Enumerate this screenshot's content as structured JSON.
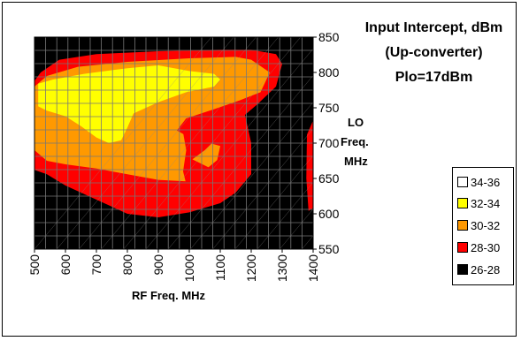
{
  "chart_data": {
    "type": "heatmap",
    "title_lines": [
      "Input Intercept, dBm",
      "(Up-converter)",
      "Plo=17dBm"
    ],
    "xlabel": "RF Freq. MHz",
    "ylabel_lines": [
      "LO",
      "Freq.",
      "MHz"
    ],
    "x_ticks": [
      "500",
      "600",
      "700",
      "800",
      "900",
      "1000",
      "1100",
      "1200",
      "1300",
      "1400"
    ],
    "y_ticks": [
      "850",
      "800",
      "750",
      "700",
      "650",
      "600",
      "550"
    ],
    "xlim": [
      500,
      1400
    ],
    "ylim": [
      550,
      850
    ],
    "grid": true,
    "legend": [
      {
        "label": "34-36",
        "color": "#ffffff"
      },
      {
        "label": "32-34",
        "color": "#ffff00"
      },
      {
        "label": "30-32",
        "color": "#ff9900"
      },
      {
        "label": "28-30",
        "color": "#ff0000"
      },
      {
        "label": "26-28",
        "color": "#000000"
      }
    ],
    "regions": [
      {
        "band": "28-30",
        "points": [
          [
            500,
            690
          ],
          [
            500,
            788
          ],
          [
            520,
            800
          ],
          [
            580,
            818
          ],
          [
            700,
            826
          ],
          [
            900,
            830
          ],
          [
            1100,
            832
          ],
          [
            1200,
            832
          ],
          [
            1280,
            826
          ],
          [
            1300,
            812
          ],
          [
            1280,
            780
          ],
          [
            1220,
            755
          ],
          [
            1180,
            740
          ],
          [
            1200,
            700
          ],
          [
            1200,
            656
          ],
          [
            1150,
            630
          ],
          [
            1100,
            615
          ],
          [
            1000,
            602
          ],
          [
            900,
            595
          ],
          [
            800,
            600
          ],
          [
            700,
            620
          ],
          [
            600,
            640
          ],
          [
            540,
            656
          ],
          [
            500,
            662
          ]
        ]
      },
      {
        "band": "28-30",
        "points": [
          [
            1380,
            712
          ],
          [
            1400,
            732
          ],
          [
            1400,
            608
          ],
          [
            1385,
            604
          ],
          [
            1378,
            650
          ]
        ]
      },
      {
        "band": "30-32",
        "points": [
          [
            500,
            690
          ],
          [
            500,
            780
          ],
          [
            540,
            795
          ],
          [
            640,
            808
          ],
          [
            800,
            815
          ],
          [
            1000,
            820
          ],
          [
            1150,
            822
          ],
          [
            1200,
            818
          ],
          [
            1260,
            800
          ],
          [
            1230,
            772
          ],
          [
            1160,
            760
          ],
          [
            1080,
            748
          ],
          [
            990,
            735
          ],
          [
            960,
            718
          ],
          [
            1000,
            708
          ],
          [
            1100,
            696
          ],
          [
            1090,
            676
          ],
          [
            1040,
            658
          ],
          [
            990,
            646
          ],
          [
            900,
            648
          ],
          [
            800,
            656
          ],
          [
            700,
            664
          ],
          [
            600,
            670
          ],
          [
            540,
            675
          ]
        ]
      },
      {
        "band": "28-30",
        "points": [
          [
            988,
            734
          ],
          [
            1080,
            746
          ],
          [
            1160,
            760
          ],
          [
            1150,
            732
          ],
          [
            1120,
            716
          ],
          [
            1080,
            703
          ],
          [
            1050,
            690
          ],
          [
            1010,
            677
          ],
          [
            1070,
            664
          ],
          [
            1105,
            668
          ],
          [
            1110,
            650
          ],
          [
            1070,
            640
          ],
          [
            1030,
            636
          ],
          [
            990,
            642
          ],
          [
            980,
            660
          ],
          [
            990,
            690
          ],
          [
            980,
            715
          ]
        ]
      },
      {
        "band": "32-34",
        "points": [
          [
            512,
            752
          ],
          [
            512,
            784
          ],
          [
            560,
            790
          ],
          [
            660,
            798
          ],
          [
            800,
            806
          ],
          [
            900,
            810
          ],
          [
            1000,
            802
          ],
          [
            1080,
            798
          ],
          [
            1100,
            790
          ],
          [
            1080,
            780
          ],
          [
            990,
            772
          ],
          [
            900,
            758
          ],
          [
            820,
            742
          ],
          [
            800,
            722
          ],
          [
            780,
            704
          ],
          [
            740,
            700
          ],
          [
            700,
            708
          ],
          [
            650,
            724
          ],
          [
            600,
            738
          ],
          [
            540,
            746
          ]
        ]
      }
    ]
  }
}
